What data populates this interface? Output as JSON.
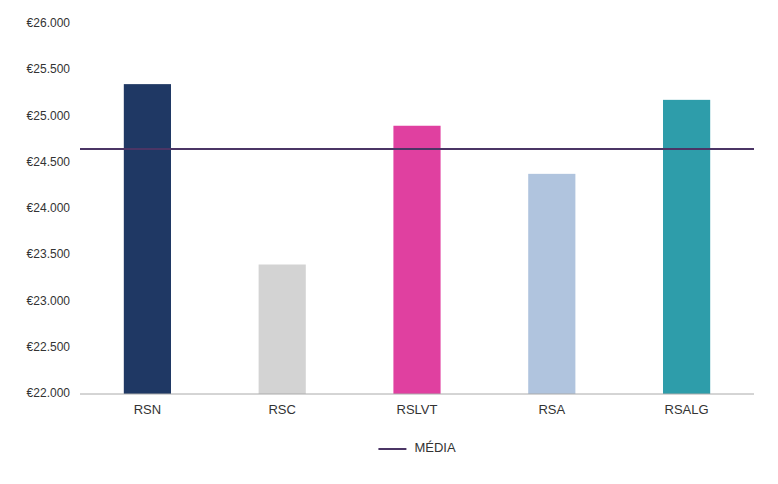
{
  "chart_data": {
    "type": "bar",
    "categories": [
      "RSN",
      "RSC",
      "RSLVT",
      "RSA",
      "RSALG"
    ],
    "values": [
      25350,
      23400,
      24900,
      24380,
      25180
    ],
    "colors": [
      "#1F3864",
      "#D3D3D3",
      "#E040A0",
      "#B0C4DE",
      "#2E9DAA"
    ],
    "reference_line": {
      "name": "MÉDIA",
      "value": 24650,
      "color": "#4B3565"
    },
    "ylim": [
      22000,
      26000
    ],
    "yticks": [
      {
        "value": 22000,
        "label": "€22.000"
      },
      {
        "value": 22500,
        "label": "€22.500"
      },
      {
        "value": 23000,
        "label": "€23.000"
      },
      {
        "value": 23500,
        "label": "€23.500"
      },
      {
        "value": 24000,
        "label": "€24.000"
      },
      {
        "value": 24500,
        "label": "€24.500"
      },
      {
        "value": 25000,
        "label": "€25.000"
      },
      {
        "value": 25500,
        "label": "€25.500"
      },
      {
        "value": 26000,
        "label": "€26.000"
      }
    ],
    "grid": false,
    "legend": "bottom"
  }
}
